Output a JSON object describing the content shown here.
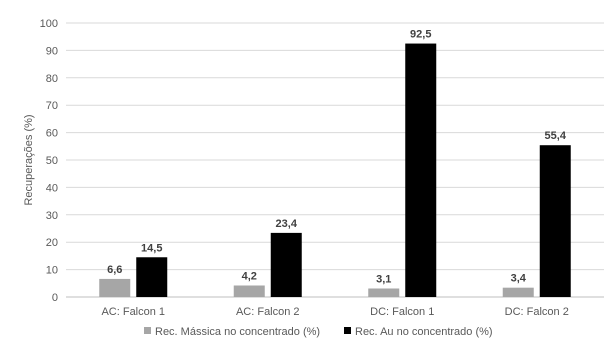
{
  "chart_data": {
    "type": "bar",
    "ylabel": "Recuperações (%)",
    "ylim": [
      0,
      100
    ],
    "yticks": [
      0,
      10,
      20,
      30,
      40,
      50,
      60,
      70,
      80,
      90,
      100
    ],
    "grid": true,
    "legend_position": "bottom",
    "categories": [
      "AC: Falcon 1",
      "AC: Falcon 2",
      "DC: Falcon 1",
      "DC: Falcon 2"
    ],
    "series": [
      {
        "name": "Rec. Mássica no concentrado (%)",
        "color": "#a6a6a6",
        "values": [
          6.6,
          4.2,
          3.1,
          3.4
        ],
        "labels": [
          "6,6",
          "4,2",
          "3,1",
          "3,4"
        ]
      },
      {
        "name": "Rec. Au no concentrado (%)",
        "color": "#000000",
        "values": [
          14.5,
          23.4,
          92.5,
          55.4
        ],
        "labels": [
          "14,5",
          "23,4",
          "92,5",
          "55,4"
        ]
      }
    ]
  }
}
